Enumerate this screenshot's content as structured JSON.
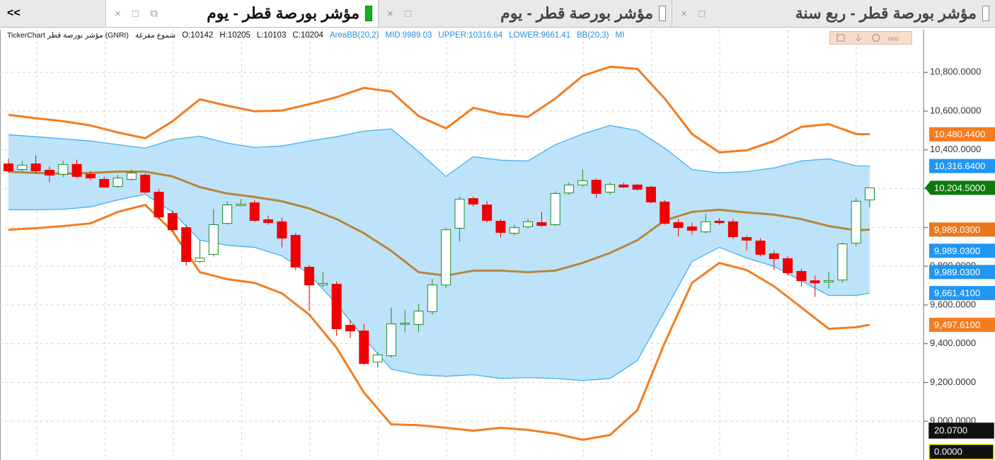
{
  "tabs": {
    "back": "<<",
    "items": [
      "مؤشر بورصة قطر - يوم",
      "مؤشر بورصة قطر - يوم",
      "مؤشر بورصة قطر - ربع سنة"
    ]
  },
  "info": {
    "name": "TickerChart مؤشر بورصة قطر (GNRI)",
    "style": "شموع مفرغة",
    "ohlc": [
      "O:10142",
      "H:10205",
      "L:10103",
      "C:10204"
    ],
    "indicators": [
      "AreaBB(20,2)",
      "MID:9989.03",
      "UPPER:10316.64",
      "LOWER:9661.41",
      "BB(20,3)",
      "MI"
    ]
  },
  "chart_data": {
    "type": "candlestick",
    "up_color": "#1e8c1e",
    "down_color": "#f00000",
    "open": [
      10328,
      10299,
      10328,
      10295,
      10274,
      10325,
      10274,
      10248,
      10211,
      10248,
      10270,
      10182,
      10072,
      9999,
      9824,
      9861,
      10021,
      10113,
      10127,
      10040,
      10029,
      9959,
      9795,
      9703,
      9707,
      9495,
      9466,
      9305,
      9338,
      9502,
      9499,
      9565,
      9703,
      9996,
      10149,
      10116,
      10032,
      9970,
      10003,
      10025,
      10014,
      10178,
      10219,
      10244,
      10182,
      10219,
      10219,
      10208,
      10131,
      10025,
      10003,
      9977,
      10032,
      10029,
      9948,
      9930,
      9864,
      9839,
      9773,
      9725,
      9718,
      9729,
      9919,
      10142
    ],
    "high": [
      10354,
      10343,
      10372,
      10314,
      10343,
      10350,
      10292,
      10263,
      10270,
      10299,
      10281,
      10197,
      10087,
      10014,
      9934,
      10094,
      10135,
      10146,
      10142,
      10061,
      10051,
      9970,
      9806,
      9769,
      9722,
      9524,
      9502,
      9356,
      9587,
      9575,
      9605,
      9733,
      9999,
      10160,
      10160,
      10135,
      10043,
      10014,
      10043,
      10080,
      10186,
      10233,
      10299,
      10252,
      10233,
      10233,
      10226,
      10215,
      10142,
      10043,
      10025,
      10069,
      10047,
      10043,
      9959,
      9945,
      9879,
      9853,
      9787,
      9751,
      9769,
      9923,
      10153,
      10205
    ],
    "low": [
      10281,
      10288,
      10277,
      10233,
      10259,
      10255,
      10244,
      10204,
      10204,
      10241,
      10175,
      10043,
      9977,
      9802,
      9817,
      9850,
      10014,
      10109,
      10029,
      10014,
      9897,
      9780,
      9568,
      9692,
      9440,
      9429,
      9291,
      9276,
      9327,
      9459,
      9459,
      9550,
      9685,
      9926,
      10109,
      10025,
      9948,
      9959,
      9992,
      10003,
      10007,
      10168,
      10208,
      10153,
      10168,
      10204,
      10189,
      10124,
      10014,
      9952,
      9963,
      9970,
      10014,
      9941,
      9879,
      9850,
      9780,
      9751,
      9696,
      9641,
      9685,
      9714,
      9904,
      10103
    ],
    "close": [
      10292,
      10321,
      10292,
      10270,
      10325,
      10263,
      10255,
      10208,
      10255,
      10281,
      10182,
      10054,
      9988,
      9824,
      9842,
      10014,
      10116,
      10120,
      10036,
      10025,
      9945,
      9795,
      9703,
      9711,
      9477,
      9466,
      9298,
      9342,
      9502,
      9506,
      9568,
      9703,
      9988,
      10146,
      10120,
      10036,
      9974,
      9999,
      10029,
      10010,
      10175,
      10219,
      10241,
      10175,
      10222,
      10208,
      10197,
      10131,
      10021,
      9999,
      9985,
      10029,
      10025,
      9952,
      9934,
      9861,
      9839,
      9766,
      9725,
      9714,
      9725,
      9915,
      10135,
      10204
    ],
    "band_fill": "#bde3fa",
    "series": [
      {
        "color": "#f47c20",
        "x": [
          0,
          2,
          4,
          6,
          8,
          10,
          12,
          14,
          16,
          18,
          20,
          22,
          24,
          26,
          28,
          30,
          32,
          34,
          36,
          38,
          40,
          42,
          44,
          46,
          48,
          50,
          52,
          54,
          56,
          58,
          60,
          62,
          63
        ],
        "values": [
          10581,
          10563,
          10548,
          10526,
          10490,
          10460,
          10548,
          10661,
          10628,
          10599,
          10603,
          10636,
          10672,
          10720,
          10701,
          10574,
          10511,
          10617,
          10585,
          10570,
          10665,
          10782,
          10829,
          10818,
          10665,
          10482,
          10387,
          10398,
          10446,
          10519,
          10533,
          10482,
          10480.44
        ]
      },
      {
        "color": "#45aef0",
        "x": [
          0,
          2,
          4,
          6,
          8,
          10,
          12,
          14,
          16,
          18,
          20,
          22,
          24,
          26,
          28,
          30,
          32,
          34,
          36,
          38,
          40,
          42,
          44,
          46,
          48,
          50,
          52,
          54,
          56,
          58,
          60,
          62,
          63
        ],
        "values": [
          10478,
          10468,
          10457,
          10446,
          10427,
          10409,
          10453,
          10471,
          10435,
          10413,
          10420,
          10446,
          10468,
          10497,
          10508,
          10391,
          10263,
          10365,
          10347,
          10343,
          10427,
          10482,
          10526,
          10500,
          10409,
          10299,
          10281,
          10288,
          10307,
          10343,
          10354,
          10318,
          10316.64
        ]
      },
      {
        "color": "#b8863b",
        "x": [
          0,
          2,
          4,
          6,
          8,
          10,
          12,
          14,
          16,
          18,
          20,
          22,
          24,
          26,
          28,
          30,
          32,
          34,
          36,
          38,
          40,
          42,
          44,
          46,
          48,
          50,
          52,
          54,
          56,
          58,
          60,
          62,
          63
        ],
        "values": [
          10288,
          10281,
          10277,
          10281,
          10288,
          10288,
          10263,
          10208,
          10175,
          10157,
          10135,
          10098,
          10043,
          9970,
          9879,
          9769,
          9751,
          9777,
          9777,
          9769,
          9777,
          9817,
          9868,
          9934,
          10036,
          10080,
          10091,
          10077,
          10066,
          10043,
          10007,
          9985,
          9989.03
        ]
      },
      {
        "color": "#45aef0",
        "x": [
          0,
          2,
          4,
          6,
          8,
          10,
          12,
          14,
          16,
          18,
          20,
          22,
          24,
          26,
          28,
          30,
          32,
          34,
          36,
          38,
          40,
          42,
          44,
          46,
          48,
          50,
          52,
          54,
          56,
          58,
          60,
          62,
          63
        ],
        "values": [
          10091,
          10091,
          10094,
          10106,
          10142,
          10171,
          10080,
          9934,
          9908,
          9897,
          9853,
          9759,
          9605,
          9429,
          9269,
          9240,
          9232,
          9240,
          9221,
          9225,
          9221,
          9210,
          9221,
          9313,
          9568,
          9824,
          9897,
          9842,
          9799,
          9725,
          9649,
          9649,
          9661.41
        ]
      },
      {
        "color": "#f47c20",
        "x": [
          0,
          2,
          4,
          6,
          8,
          10,
          12,
          14,
          16,
          18,
          20,
          22,
          24,
          26,
          28,
          30,
          32,
          34,
          36,
          38,
          40,
          42,
          44,
          46,
          48,
          50,
          52,
          54,
          56,
          58,
          60,
          62,
          63
        ],
        "values": [
          9988,
          9996,
          10007,
          10021,
          10080,
          10116,
          9981,
          9769,
          9733,
          9714,
          9660,
          9550,
          9379,
          9148,
          8984,
          8980,
          8966,
          8951,
          8966,
          8955,
          8936,
          8904,
          8929,
          9057,
          9404,
          9714,
          9817,
          9780,
          9696,
          9587,
          9477,
          9485,
          9497.61
        ]
      }
    ],
    "ylim": [
      8800,
      11020
    ],
    "yticks": [
      {
        "value": 9000,
        "label": "9,000.0000"
      },
      {
        "value": 9200,
        "label": "9,200.0000"
      },
      {
        "value": 9400,
        "label": "9,400.0000"
      },
      {
        "value": 9600,
        "label": "9,600.0000"
      },
      {
        "value": 9800,
        "label": "9,800.0000"
      },
      {
        "value": 10000,
        "label": "10,000.0000"
      },
      {
        "value": 10200,
        "label": "10,200.0000"
      },
      {
        "value": 10400,
        "label": "10,400.0000"
      },
      {
        "value": 10600,
        "label": "10,600.0000"
      },
      {
        "value": 10800,
        "label": "10,800.0000"
      }
    ],
    "grid": true,
    "axis_badges": [
      {
        "value": 10480.44,
        "label": "10,480.4400",
        "color": "#f47c20"
      },
      {
        "value": 10316.64,
        "label": "10,316.6400",
        "color": "#2196f3"
      },
      {
        "value": 10204.5,
        "label": "10,204.5000",
        "color": "#0e7a0e"
      },
      {
        "value": 9989.03,
        "label": "9,989.0300",
        "color": "#e8781e"
      },
      {
        "value": 9989.03,
        "label": "9,989.0300",
        "color": "#2196f3"
      },
      {
        "value": 9989.03,
        "label": "9,989.0300",
        "color": "#2196f3"
      },
      {
        "value": 9661.41,
        "label": "9,661.4100",
        "color": "#2196f3"
      },
      {
        "value": 9497.61,
        "label": "9,497.6100",
        "color": "#f47c20"
      }
    ],
    "lower_badges": [
      "20.0700",
      "0.0000"
    ]
  }
}
